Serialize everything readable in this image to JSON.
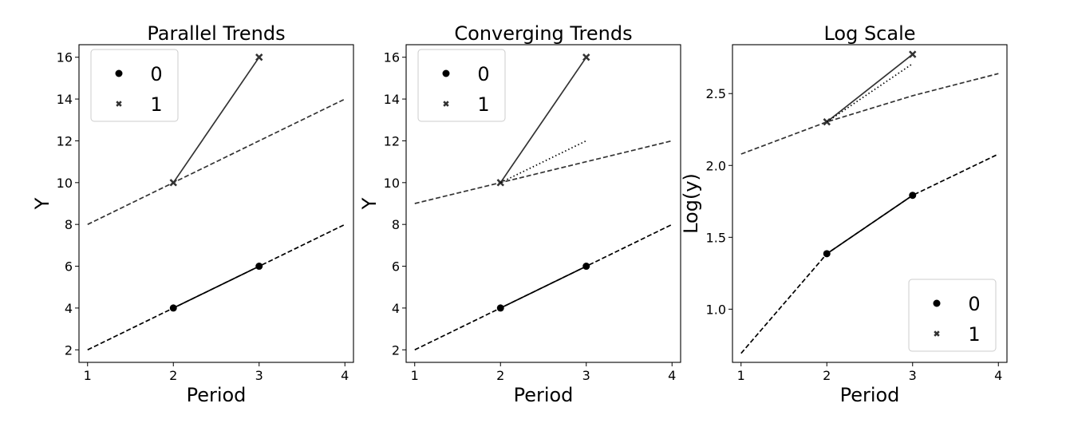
{
  "chart_data": [
    {
      "type": "line",
      "title": "Parallel Trends",
      "xlabel": "Period",
      "ylabel": "Y",
      "xlim": [
        0.9,
        4.1
      ],
      "ylim": [
        1.4,
        16.6
      ],
      "xticks": [
        1,
        2,
        3,
        4
      ],
      "yticks": [
        2,
        4,
        6,
        8,
        10,
        12,
        14,
        16
      ],
      "legend_position": "top-left",
      "legend": [
        {
          "label": "0",
          "marker": "circle"
        },
        {
          "label": "1",
          "marker": "x"
        }
      ],
      "series": [
        {
          "group": "0",
          "style": "solid",
          "marker": "circle",
          "color": "#000000",
          "x": [
            2,
            3
          ],
          "y": [
            4,
            6
          ]
        },
        {
          "group": "0",
          "style": "dashed",
          "color": "#000000",
          "x": [
            1,
            2,
            3,
            4
          ],
          "y": [
            2,
            4,
            6,
            8
          ]
        },
        {
          "group": "1",
          "style": "solid",
          "marker": "x",
          "color": "#333333",
          "x": [
            2,
            3
          ],
          "y": [
            10,
            16
          ]
        },
        {
          "group": "1",
          "style": "dashed",
          "color": "#333333",
          "x": [
            1,
            2,
            3,
            4
          ],
          "y": [
            8,
            10,
            12,
            14
          ]
        }
      ]
    },
    {
      "type": "line",
      "title": "Converging Trends",
      "xlabel": "Period",
      "ylabel": "Y",
      "xlim": [
        0.9,
        4.1
      ],
      "ylim": [
        1.4,
        16.6
      ],
      "xticks": [
        1,
        2,
        3,
        4
      ],
      "yticks": [
        2,
        4,
        6,
        8,
        10,
        12,
        14,
        16
      ],
      "legend_position": "top-left",
      "legend": [
        {
          "label": "0",
          "marker": "circle"
        },
        {
          "label": "1",
          "marker": "x"
        }
      ],
      "series": [
        {
          "group": "0",
          "style": "solid",
          "marker": "circle",
          "color": "#000000",
          "x": [
            2,
            3
          ],
          "y": [
            4,
            6
          ]
        },
        {
          "group": "0",
          "style": "dashed",
          "color": "#000000",
          "x": [
            1,
            2,
            3,
            4
          ],
          "y": [
            2,
            4,
            6,
            8
          ]
        },
        {
          "group": "1",
          "style": "solid",
          "marker": "x",
          "color": "#333333",
          "x": [
            2,
            3
          ],
          "y": [
            10,
            16
          ]
        },
        {
          "group": "1",
          "style": "dashed",
          "color": "#333333",
          "x": [
            1,
            2,
            3,
            4
          ],
          "y": [
            9,
            10,
            11,
            12
          ]
        },
        {
          "group": "1",
          "style": "dotted",
          "color": "#000000",
          "x": [
            2,
            3
          ],
          "y": [
            10,
            12
          ]
        }
      ]
    },
    {
      "type": "line",
      "title": "Log Scale",
      "xlabel": "Period",
      "ylabel": "Log(y)",
      "xlim": [
        0.9,
        4.1
      ],
      "ylim": [
        0.63,
        2.84
      ],
      "xticks": [
        1,
        2,
        3,
        4
      ],
      "yticks": [
        1.0,
        1.5,
        2.0,
        2.5
      ],
      "yticklabels": [
        "1.0",
        "1.5",
        "2.0",
        "2.5"
      ],
      "legend_position": "bottom-right",
      "legend": [
        {
          "label": "0",
          "marker": "circle"
        },
        {
          "label": "1",
          "marker": "x"
        }
      ],
      "series": [
        {
          "group": "0",
          "style": "solid",
          "marker": "circle",
          "color": "#000000",
          "x": [
            2,
            3
          ],
          "y": [
            1.386,
            1.792
          ]
        },
        {
          "group": "0",
          "style": "dashed",
          "color": "#000000",
          "x": [
            1,
            2,
            3,
            4
          ],
          "y": [
            0.693,
            1.386,
            1.792,
            2.079
          ]
        },
        {
          "group": "1",
          "style": "solid",
          "marker": "x",
          "color": "#333333",
          "x": [
            2,
            3
          ],
          "y": [
            2.303,
            2.773
          ]
        },
        {
          "group": "1",
          "style": "dashed",
          "color": "#333333",
          "x": [
            1,
            2,
            3,
            4
          ],
          "y": [
            2.079,
            2.303,
            2.485,
            2.639
          ]
        },
        {
          "group": "1",
          "style": "dotted",
          "color": "#000000",
          "x": [
            2,
            3
          ],
          "y": [
            2.303,
            2.708
          ]
        }
      ]
    }
  ]
}
